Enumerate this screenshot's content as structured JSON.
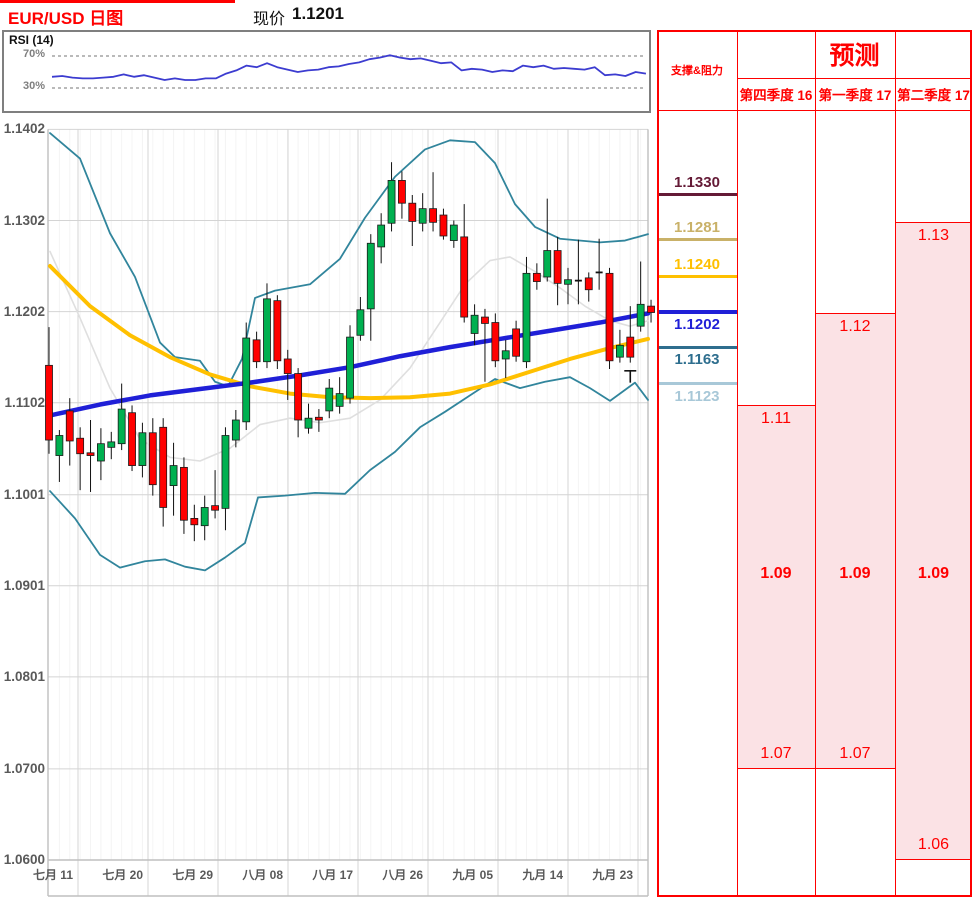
{
  "header": {
    "title": "EUR/USD 日图",
    "price_label": "现价",
    "price_value": "1.1201"
  },
  "rsi_panel": {
    "label": "RSI (14)",
    "upper_label": "70%",
    "lower_label": "30%"
  },
  "panel": {
    "sr_title": "支撑&阻力",
    "forecast_title": "预测",
    "quarters": [
      {
        "label": "第四季度 16"
      },
      {
        "label": "第一季度 17"
      },
      {
        "label": "第二季度 17"
      }
    ]
  },
  "colors": {
    "up": "#00B050",
    "down": "#FF0000",
    "candle_outline": "#1A1A1A",
    "bollinger": "#31859C",
    "ma_yellow": "#FFC000",
    "trend_blue": "#1F1FD7",
    "mid_gray": "#DFDFDF",
    "grid": "#D4D4D4",
    "stripe": "#F4F4F4",
    "axis_text": "#595959",
    "panel_red": "#FE0000",
    "pink": "#FBE2E5",
    "rsi_line": "#3C3CD0",
    "rsi_dash": "#909090",
    "border_gray": "#BFBFBF"
  },
  "chart_data": {
    "type": "candlestick",
    "title": "EUR/USD 日图",
    "current_price": 1.1201,
    "y_axis_labels": [
      {
        "text": "1.1402",
        "value": 1.1402
      },
      {
        "text": "1.1302",
        "value": 1.1302
      },
      {
        "text": "1.1202",
        "value": 1.1202
      },
      {
        "text": "1.1102",
        "value": 1.1102
      },
      {
        "text": "1.1001",
        "value": 1.1001
      },
      {
        "text": "1.0901",
        "value": 1.0901
      },
      {
        "text": "1.0801",
        "value": 1.0801
      },
      {
        "text": "1.0700",
        "value": 1.07
      },
      {
        "text": "1.0600",
        "value": 1.06
      }
    ],
    "x_axis_labels": [
      "七月 11",
      "七月 20",
      "七月 29",
      "八月 08",
      "八月 17",
      "八月 26",
      "九月 05",
      "九月 14",
      "九月 23"
    ],
    "candles": [
      [
        1.1143,
        1.1185,
        1.1046,
        1.1061
      ],
      [
        1.1044,
        1.1072,
        1.1015,
        1.1066
      ],
      [
        1.1093,
        1.1107,
        1.1033,
        1.106
      ],
      [
        1.1063,
        1.1075,
        1.1006,
        1.1046
      ],
      [
        1.1047,
        1.1083,
        1.1004,
        1.1044
      ],
      [
        1.1038,
        1.1074,
        1.1017,
        1.1057
      ],
      [
        1.1053,
        1.107,
        1.104,
        1.1059
      ],
      [
        1.1057,
        1.1123,
        1.105,
        1.1095
      ],
      [
        1.1091,
        1.1099,
        1.1027,
        1.1033
      ],
      [
        1.1033,
        1.108,
        1.102,
        1.1069
      ],
      [
        1.1069,
        1.1085,
        1.1,
        1.1012
      ],
      [
        1.1075,
        1.1085,
        1.0966,
        1.0987
      ],
      [
        1.1011,
        1.1058,
        1.0978,
        1.1033
      ],
      [
        1.1031,
        1.1042,
        1.0958,
        1.0973
      ],
      [
        1.0975,
        1.099,
        1.095,
        1.0968
      ],
      [
        1.0967,
        1.1,
        1.0951,
        1.0987
      ],
      [
        1.0989,
        1.1028,
        1.0975,
        1.0984
      ],
      [
        1.0986,
        1.1075,
        1.0962,
        1.1066
      ],
      [
        1.1061,
        1.1094,
        1.1053,
        1.1083
      ],
      [
        1.1081,
        1.119,
        1.1072,
        1.1173
      ],
      [
        1.1171,
        1.118,
        1.114,
        1.1147
      ],
      [
        1.1147,
        1.1233,
        1.114,
        1.1216
      ],
      [
        1.1214,
        1.122,
        1.1139,
        1.1148
      ],
      [
        1.115,
        1.116,
        1.1105,
        1.1134
      ],
      [
        1.1134,
        1.114,
        1.1064,
        1.1083
      ],
      [
        1.1074,
        1.1101,
        1.1068,
        1.1085
      ],
      [
        1.1086,
        1.1095,
        1.107,
        1.1083
      ],
      [
        1.1093,
        1.1128,
        1.1085,
        1.1118
      ],
      [
        1.1098,
        1.113,
        1.109,
        1.1112
      ],
      [
        1.1107,
        1.1187,
        1.1101,
        1.1174
      ],
      [
        1.1176,
        1.1218,
        1.117,
        1.1204
      ],
      [
        1.1205,
        1.1287,
        1.117,
        1.1277
      ],
      [
        1.1273,
        1.131,
        1.1255,
        1.1297
      ],
      [
        1.1299,
        1.1366,
        1.129,
        1.1346
      ],
      [
        1.1346,
        1.1356,
        1.1304,
        1.1321
      ],
      [
        1.1321,
        1.133,
        1.1274,
        1.1301
      ],
      [
        1.1299,
        1.1332,
        1.129,
        1.1315
      ],
      [
        1.1315,
        1.1355,
        1.129,
        1.13
      ],
      [
        1.1308,
        1.1315,
        1.1281,
        1.1285
      ],
      [
        1.128,
        1.1302,
        1.1272,
        1.1297
      ],
      [
        1.1284,
        1.132,
        1.119,
        1.1196
      ],
      [
        1.1178,
        1.121,
        1.1165,
        1.1198
      ],
      [
        1.1196,
        1.1205,
        1.1125,
        1.1189
      ],
      [
        1.119,
        1.12,
        1.1141,
        1.1148
      ],
      [
        1.115,
        1.1171,
        1.1129,
        1.1159
      ],
      [
        1.1183,
        1.1192,
        1.1147,
        1.1153
      ],
      [
        1.1147,
        1.1262,
        1.114,
        1.1244
      ],
      [
        1.1244,
        1.1255,
        1.1226,
        1.1235
      ],
      [
        1.124,
        1.1326,
        1.1235,
        1.1269
      ],
      [
        1.1269,
        1.1284,
        1.1209,
        1.1233
      ],
      [
        1.1232,
        1.125,
        1.121,
        1.1237
      ],
      [
        1.1236,
        1.1281,
        1.121,
        1.1236
      ],
      [
        1.1239,
        1.1245,
        1.1213,
        1.1226
      ],
      [
        1.1245,
        1.1282,
        1.1226,
        1.1245
      ],
      [
        1.1244,
        1.125,
        1.1139,
        1.1148
      ],
      [
        1.1152,
        1.1182,
        1.1146,
        1.1165
      ],
      [
        1.1174,
        1.1208,
        1.1146,
        1.1152
      ],
      [
        1.1186,
        1.1257,
        1.118,
        1.121
      ],
      [
        1.1208,
        1.1215,
        1.119,
        1.1201
      ]
    ],
    "overlays": {
      "trend_blue": [
        [
          50,
          1.1088
        ],
        [
          100,
          1.11
        ],
        [
          150,
          1.111
        ],
        [
          200,
          1.1117
        ],
        [
          250,
          1.1124
        ],
        [
          300,
          1.1132
        ],
        [
          350,
          1.1141
        ],
        [
          400,
          1.1153
        ],
        [
          450,
          1.1163
        ],
        [
          500,
          1.1172
        ],
        [
          550,
          1.1181
        ],
        [
          600,
          1.119
        ],
        [
          648,
          1.12
        ]
      ],
      "ma_yellow": [
        [
          50,
          1.1252
        ],
        [
          90,
          1.1208
        ],
        [
          130,
          1.1176
        ],
        [
          170,
          1.1152
        ],
        [
          210,
          1.1133
        ],
        [
          250,
          1.112
        ],
        [
          290,
          1.1112
        ],
        [
          330,
          1.1108
        ],
        [
          370,
          1.1107
        ],
        [
          410,
          1.1108
        ],
        [
          450,
          1.1112
        ],
        [
          490,
          1.1122
        ],
        [
          530,
          1.1136
        ],
        [
          570,
          1.115
        ],
        [
          610,
          1.1162
        ],
        [
          648,
          1.1172
        ]
      ],
      "boll_upper": [
        [
          50,
          1.1398
        ],
        [
          80,
          1.137
        ],
        [
          110,
          1.1288
        ],
        [
          135,
          1.124
        ],
        [
          160,
          1.1168
        ],
        [
          175,
          1.1152
        ],
        [
          200,
          1.1148
        ],
        [
          215,
          1.1125
        ],
        [
          228,
          1.112
        ],
        [
          242,
          1.115
        ],
        [
          255,
          1.1217
        ],
        [
          275,
          1.1225
        ],
        [
          310,
          1.1232
        ],
        [
          340,
          1.126
        ],
        [
          365,
          1.1305
        ],
        [
          395,
          1.135
        ],
        [
          425,
          1.138
        ],
        [
          450,
          1.139
        ],
        [
          475,
          1.1388
        ],
        [
          495,
          1.1365
        ],
        [
          515,
          1.132
        ],
        [
          535,
          1.1295
        ],
        [
          560,
          1.1282
        ],
        [
          600,
          1.1278
        ],
        [
          625,
          1.128
        ],
        [
          648,
          1.1287
        ]
      ],
      "boll_lower": [
        [
          50,
          1.1005
        ],
        [
          75,
          1.0975
        ],
        [
          100,
          1.0935
        ],
        [
          120,
          1.0921
        ],
        [
          145,
          1.0928
        ],
        [
          165,
          1.093
        ],
        [
          185,
          1.0922
        ],
        [
          205,
          1.0918
        ],
        [
          225,
          1.0932
        ],
        [
          245,
          1.0948
        ],
        [
          258,
          1.0998
        ],
        [
          285,
          1.1
        ],
        [
          315,
          1.1003
        ],
        [
          345,
          1.1002
        ],
        [
          370,
          1.1028
        ],
        [
          395,
          1.1048
        ],
        [
          420,
          1.1075
        ],
        [
          445,
          1.1092
        ],
        [
          470,
          1.111
        ],
        [
          495,
          1.1128
        ],
        [
          520,
          1.1118
        ],
        [
          545,
          1.1125
        ],
        [
          570,
          1.113
        ],
        [
          590,
          1.1118
        ],
        [
          610,
          1.1104
        ],
        [
          635,
          1.1124
        ],
        [
          648,
          1.1105
        ]
      ],
      "boll_mid": [
        [
          50,
          1.1268
        ],
        [
          80,
          1.1195
        ],
        [
          110,
          1.1118
        ],
        [
          140,
          1.1062
        ],
        [
          170,
          1.1042
        ],
        [
          200,
          1.1038
        ],
        [
          230,
          1.1052
        ],
        [
          260,
          1.1078
        ],
        [
          290,
          1.1085
        ],
        [
          320,
          1.108
        ],
        [
          350,
          1.1085
        ],
        [
          380,
          1.1105
        ],
        [
          410,
          1.114
        ],
        [
          440,
          1.119
        ],
        [
          465,
          1.1232
        ],
        [
          490,
          1.1258
        ],
        [
          510,
          1.1262
        ],
        [
          535,
          1.1246
        ],
        [
          560,
          1.1228
        ],
        [
          585,
          1.1208
        ],
        [
          610,
          1.1192
        ],
        [
          630,
          1.1186
        ],
        [
          648,
          1.1192
        ]
      ]
    },
    "rsi": {
      "upper": 70,
      "lower": 30,
      "values": [
        44,
        45,
        43,
        42,
        42,
        43,
        44,
        47,
        44,
        46,
        43,
        40,
        42,
        40,
        40,
        42,
        42,
        48,
        52,
        58,
        56,
        61,
        56,
        53,
        50,
        52,
        53,
        56,
        57,
        60,
        62,
        66,
        68,
        71,
        68,
        66,
        67,
        64,
        61,
        62,
        52,
        54,
        53,
        50,
        52,
        51,
        58,
        56,
        58,
        54,
        55,
        54,
        53,
        56,
        46,
        47,
        45,
        50,
        48
      ]
    },
    "support_resistance": [
      {
        "value": "1.1330",
        "price": 1.133,
        "color": "#641A36",
        "label_position": "above"
      },
      {
        "value": "1.1281",
        "price": 1.1281,
        "color": "#C9B168",
        "label_position": "above"
      },
      {
        "value": "1.1240",
        "price": 1.124,
        "color": "#FFC000",
        "label_position": "above"
      },
      {
        "value": "1.1202",
        "price": 1.1202,
        "color": "#1F1FD7",
        "label_position": "below",
        "thick": true
      },
      {
        "value": "1.1163",
        "price": 1.1163,
        "color": "#2E6E8E",
        "label_position": "below"
      },
      {
        "value": "1.1123",
        "price": 1.1123,
        "color": "#A8C8D8",
        "label_position": "below"
      }
    ],
    "forecast": {
      "mid_line": {
        "value": "1.09",
        "price": 1.09
      },
      "columns": [
        {
          "quarter": "第四季度 16",
          "high": {
            "value": "1.11",
            "price": 1.11
          },
          "mid": "1.09",
          "low": {
            "value": "1.07",
            "price": 1.07
          }
        },
        {
          "quarter": "第一季度 17",
          "high": {
            "value": "1.12",
            "price": 1.12
          },
          "mid": "1.09",
          "low": {
            "value": "1.07",
            "price": 1.07
          }
        },
        {
          "quarter": "第二季度 17",
          "high": {
            "value": "1.13",
            "price": 1.13
          },
          "mid": "1.09",
          "low": {
            "value": "1.06",
            "price": 1.06
          }
        }
      ]
    },
    "annotations": [
      {
        "type": "t-marker",
        "x_index": 56,
        "high": 1.1137,
        "low": 1.1124
      }
    ]
  }
}
